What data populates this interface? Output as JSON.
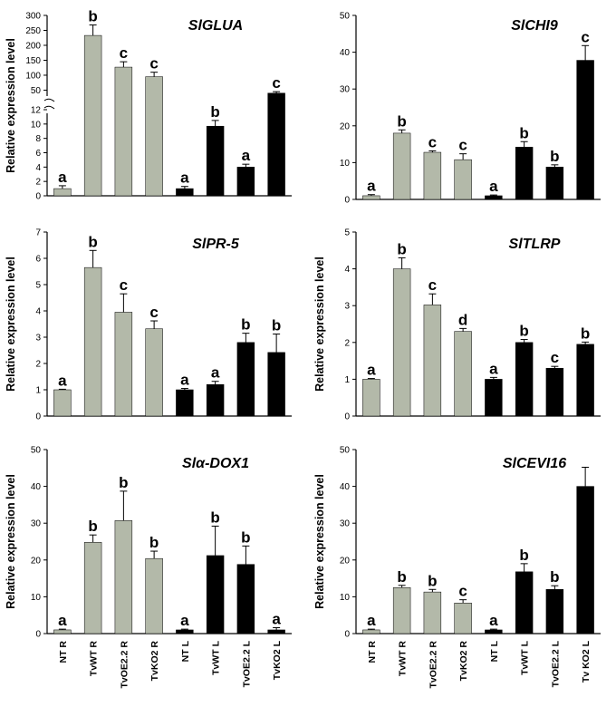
{
  "colors": {
    "root": "#b3b9a9",
    "leaf": "#000000",
    "axis": "#000000"
  },
  "chart_data": [
    {
      "type": "bar",
      "title": "SlGLUA",
      "ylabel": "Relative expression level",
      "categories": [
        "NT R",
        "TvWT R",
        "TvOE2.2 R",
        "TvKO2 R",
        "NT L",
        "TvWT L",
        "TvOE2.2 L",
        "TvKO2 L"
      ],
      "series_color_keys": [
        "root",
        "root",
        "root",
        "root",
        "leaf",
        "leaf",
        "leaf",
        "leaf"
      ],
      "values": [
        1,
        233,
        127,
        95,
        1,
        9.7,
        4,
        40
      ],
      "errors": [
        0.4,
        35,
        18,
        15,
        0.3,
        0.8,
        0.4,
        5
      ],
      "labels": [
        "a",
        "b",
        "c",
        "c",
        "a",
        "b",
        "a",
        "c"
      ],
      "broken_axis": {
        "lower": [
          0,
          12
        ],
        "upper": [
          12,
          300
        ]
      },
      "yticks_lower": [
        0,
        2,
        4,
        6,
        8,
        10,
        12
      ],
      "yticks_upper": [
        50,
        100,
        150,
        200,
        250,
        300
      ]
    },
    {
      "type": "bar",
      "title": "SlCHI9",
      "ylabel": "",
      "categories": [
        "NT R",
        "TvWT R",
        "TvOE2.2 R",
        "TvKO2 R",
        "NT L",
        "TvWT L",
        "TvOE2.2 L",
        "TvKO2 L"
      ],
      "series_color_keys": [
        "root",
        "root",
        "root",
        "root",
        "leaf",
        "leaf",
        "leaf",
        "leaf"
      ],
      "values": [
        1,
        18,
        12.8,
        10.8,
        1,
        14.2,
        8.8,
        37.8
      ],
      "errors": [
        0.3,
        0.9,
        0.4,
        1.6,
        0.2,
        1.5,
        0.6,
        4
      ],
      "labels": [
        "a",
        "b",
        "c",
        "c",
        "a",
        "b",
        "b",
        "c"
      ],
      "ylim": [
        0,
        50
      ],
      "yticks": [
        0,
        10,
        20,
        30,
        40,
        50
      ]
    },
    {
      "type": "bar",
      "title": "SlPR-5",
      "ylabel": "Relative expression level",
      "categories": [
        "NT R",
        "TvWT R",
        "TvOE2.2 R",
        "TvKO2 R",
        "NT L",
        "TvWT L",
        "TvOE2.2 L",
        "TvKO2 L"
      ],
      "series_color_keys": [
        "root",
        "root",
        "root",
        "root",
        "leaf",
        "leaf",
        "leaf",
        "leaf"
      ],
      "values": [
        1,
        5.65,
        3.95,
        3.32,
        1,
        1.2,
        2.8,
        2.42
      ],
      "errors": [
        0.02,
        0.65,
        0.7,
        0.3,
        0.05,
        0.12,
        0.35,
        0.7
      ],
      "labels": [
        "a",
        "b",
        "c",
        "c",
        "a",
        "a",
        "b",
        "b"
      ],
      "ylim": [
        0,
        7
      ],
      "yticks": [
        0,
        1,
        2,
        3,
        4,
        5,
        6,
        7
      ]
    },
    {
      "type": "bar",
      "title": "SlTLRP",
      "ylabel": "Relative expression level",
      "categories": [
        "NT R",
        "TvWT R",
        "TvOE2.2 R",
        "TvKO2 R",
        "NT L",
        "TvWT L",
        "TvOE2.2 L",
        "TvKO2 L"
      ],
      "series_color_keys": [
        "root",
        "root",
        "root",
        "root",
        "leaf",
        "leaf",
        "leaf",
        "leaf"
      ],
      "values": [
        1,
        4,
        3.02,
        2.3,
        1,
        2,
        1.3,
        1.95
      ],
      "errors": [
        0.02,
        0.3,
        0.3,
        0.08,
        0.05,
        0.08,
        0.05,
        0.06
      ],
      "labels": [
        "a",
        "b",
        "c",
        "d",
        "a",
        "b",
        "c",
        "b"
      ],
      "ylim": [
        0,
        5
      ],
      "yticks": [
        0,
        1,
        2,
        3,
        4,
        5
      ]
    },
    {
      "type": "bar",
      "title": "Slα-DOX1",
      "ylabel": "Relative expression level",
      "categories": [
        "NT R",
        "TvWT R",
        "TvOE2.2 R",
        "TvKO2 R",
        "NT L",
        "TvWT L",
        "TvOE2.2 L",
        "TvKO2 L"
      ],
      "series_color_keys": [
        "root",
        "root",
        "root",
        "root",
        "leaf",
        "leaf",
        "leaf",
        "leaf"
      ],
      "values": [
        1,
        24.8,
        30.7,
        20.4,
        1,
        21.2,
        18.8,
        1
      ],
      "errors": [
        0.2,
        2,
        8,
        2,
        0.2,
        8,
        5,
        0.6
      ],
      "labels": [
        "a",
        "b",
        "b",
        "b",
        "a",
        "b",
        "b",
        "a"
      ],
      "ylim": [
        0,
        50
      ],
      "yticks": [
        0,
        10,
        20,
        30,
        40,
        50
      ]
    },
    {
      "type": "bar",
      "title": "SlCEVI16",
      "ylabel": "Relative expression level",
      "categories": [
        "NT R",
        "TvWT R",
        "TvOE2.2 R",
        "TvKO2 R",
        "NT L",
        "TvWT L",
        "TvOE2.2 L",
        "Tv KO2 L"
      ],
      "series_color_keys": [
        "root",
        "root",
        "root",
        "root",
        "leaf",
        "leaf",
        "leaf",
        "leaf"
      ],
      "values": [
        1,
        12.5,
        11.3,
        8.3,
        1,
        16.8,
        12,
        40
      ],
      "errors": [
        0.2,
        0.6,
        0.7,
        0.9,
        0.2,
        2.2,
        1,
        5.2
      ],
      "labels": [
        "a",
        "b",
        "b",
        "c",
        "a",
        "b",
        "b",
        ""
      ],
      "ylim": [
        0,
        50
      ],
      "yticks": [
        0,
        10,
        20,
        30,
        40,
        50
      ]
    }
  ]
}
